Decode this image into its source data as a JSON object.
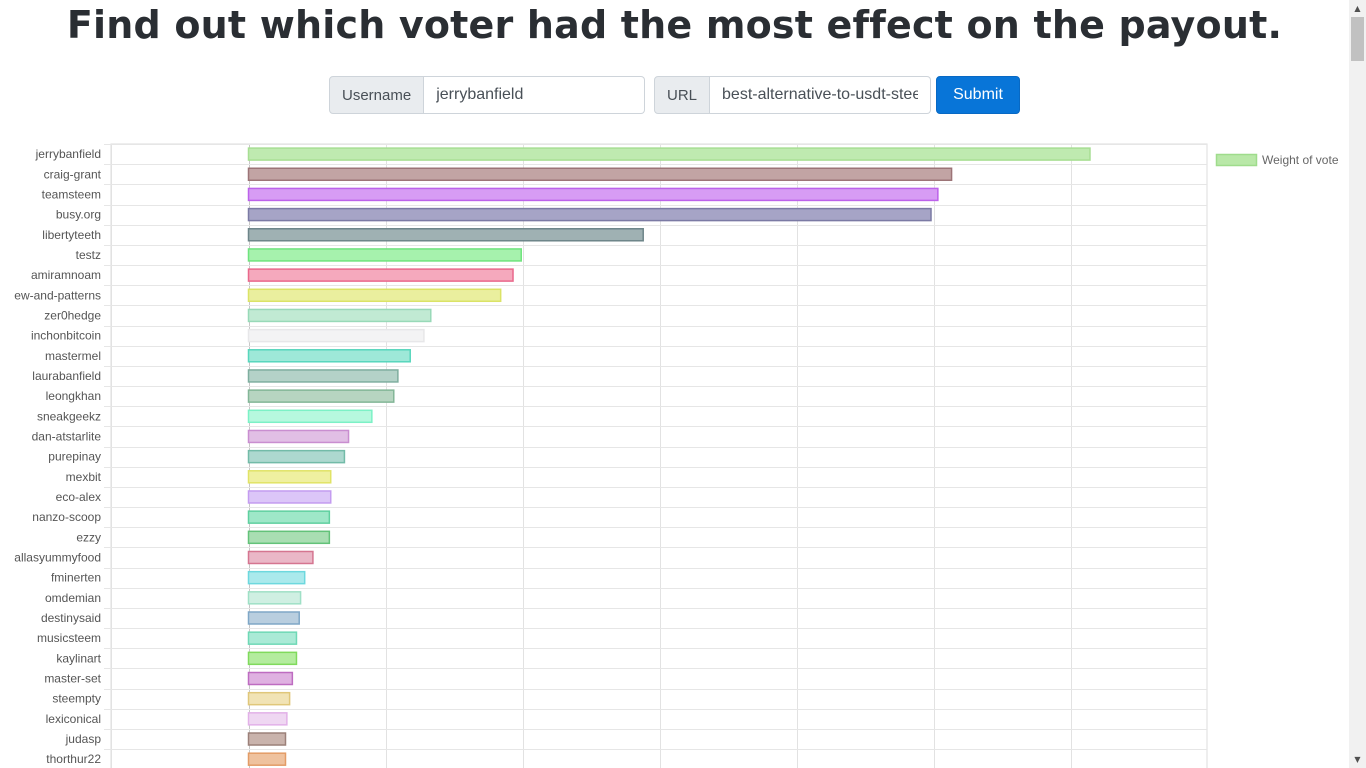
{
  "page": {
    "title": "Find out which voter had the most effect on the payout."
  },
  "form": {
    "username_label": "Username",
    "username_value": "jerrybanfield",
    "url_label": "URL",
    "url_value": "best-alternative-to-usdt-steem",
    "submit_label": "Submit"
  },
  "chart_data": {
    "type": "bar",
    "orientation": "horizontal",
    "title": "",
    "xlabel": "",
    "ylabel": "",
    "xlim": [
      -1,
      6
    ],
    "legend": {
      "label": "Weight of vote",
      "color": "#b9e8a8",
      "border": "#9fdc8c",
      "position": "top-right"
    },
    "categories": [
      "jerrybanfield",
      "craig-grant",
      "teamsteem",
      "busy.org",
      "libertyteeth",
      "testz",
      "amiramnoam",
      "ew-and-patterns",
      "zer0hedge",
      "inchonbitcoin",
      "mastermel",
      "laurabanfield",
      "leongkhan",
      "sneakgeekz",
      "dan-atstarlite",
      "purepinay",
      "mexbit",
      "eco-alex",
      "nanzo-scoop",
      "ezzy",
      "allasyummyfood",
      "fminerten",
      "omdemian",
      "destinysaid",
      "musicsteem",
      "kaylinart",
      "master-set",
      "steempty",
      "lexiconical",
      "judasp",
      "thorthur22"
    ],
    "values": [
      6.14,
      5.13,
      5.03,
      4.98,
      2.88,
      1.99,
      1.93,
      1.84,
      1.33,
      1.28,
      1.18,
      1.09,
      1.06,
      0.9,
      0.73,
      0.7,
      0.6,
      0.6,
      0.59,
      0.59,
      0.47,
      0.41,
      0.38,
      0.37,
      0.35,
      0.35,
      0.32,
      0.3,
      0.28,
      0.27,
      0.27
    ],
    "colors": [
      "#bfeab0",
      "#c2a4a4",
      "#d79cf4",
      "#a6a4c6",
      "#9fb1b3",
      "#a6f2ad",
      "#f5a9bd",
      "#eaef9e",
      "#c1ead3",
      "#f3f3f4",
      "#9ee8d8",
      "#b4d2c8",
      "#b7d5c1",
      "#b6f8de",
      "#e1bfe5",
      "#add8cf",
      "#eff0a0",
      "#dcc6f8",
      "#9ee7c8",
      "#a9deb2",
      "#eab7c7",
      "#aae9ec",
      "#cfefe2",
      "#b9cedf",
      "#aaead6",
      "#b4ec9e",
      "#dfb1e1",
      "#f1e3b5",
      "#efd7f2",
      "#c9b3ac",
      "#efc29e"
    ],
    "borders": [
      "#a7de93",
      "#9c7477",
      "#bc62ea",
      "#7b7aa4",
      "#6d8589",
      "#6fe37e",
      "#e9688b",
      "#dbe366",
      "#98d9b8",
      "#e7e7e9",
      "#58d6bc",
      "#7fae9f",
      "#83b697",
      "#7cf1c6",
      "#c98ed0",
      "#73bba8",
      "#e1e366",
      "#c49cf0",
      "#5fd09f",
      "#63c279",
      "#d57590",
      "#6dd8de",
      "#9fe0c6",
      "#7fa7c7",
      "#6fd8b6",
      "#80da5c",
      "#be6cc1",
      "#e0c77a",
      "#e2b1e8",
      "#9b8079",
      "#e39c66"
    ]
  }
}
